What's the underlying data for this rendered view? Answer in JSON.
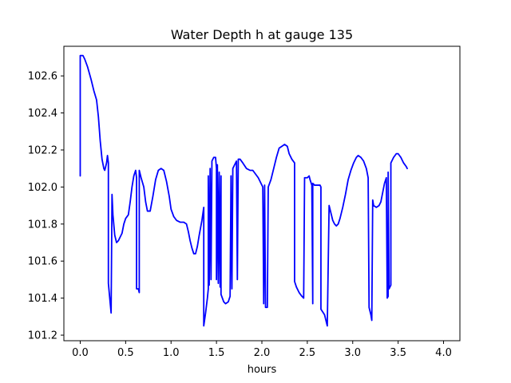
{
  "chart_data": {
    "type": "line",
    "title": "Water Depth h at gauge 135",
    "xlabel": "hours",
    "ylabel": "",
    "xlim": [
      -0.18,
      4.18
    ],
    "ylim": [
      101.17,
      102.76
    ],
    "xticks": [
      0.0,
      0.5,
      1.0,
      1.5,
      2.0,
      2.5,
      3.0,
      3.5,
      4.0
    ],
    "xtick_labels": [
      "0.0",
      "0.5",
      "1.0",
      "1.5",
      "2.0",
      "2.5",
      "3.0",
      "3.5",
      "4.0"
    ],
    "yticks": [
      101.2,
      101.4,
      101.6,
      101.8,
      102.0,
      102.2,
      102.4,
      102.6
    ],
    "ytick_labels": [
      "101.2",
      "101.4",
      "101.6",
      "101.8",
      "102.0",
      "102.2",
      "102.4",
      "102.6"
    ],
    "grid": false,
    "legend": "none",
    "series": [
      {
        "color": "#0000ff",
        "points": [
          [
            0.0,
            102.06
          ],
          [
            0.0,
            102.71
          ],
          [
            0.03,
            102.71
          ],
          [
            0.05,
            102.69
          ],
          [
            0.08,
            102.65
          ],
          [
            0.12,
            102.58
          ],
          [
            0.15,
            102.52
          ],
          [
            0.18,
            102.47
          ],
          [
            0.2,
            102.38
          ],
          [
            0.22,
            102.25
          ],
          [
            0.24,
            102.15
          ],
          [
            0.26,
            102.1
          ],
          [
            0.27,
            102.09
          ],
          [
            0.29,
            102.13
          ],
          [
            0.3,
            102.17
          ],
          [
            0.31,
            102.13
          ],
          [
            0.31,
            101.48
          ],
          [
            0.34,
            101.32
          ],
          [
            0.35,
            101.96
          ],
          [
            0.36,
            101.85
          ],
          [
            0.38,
            101.74
          ],
          [
            0.4,
            101.7
          ],
          [
            0.42,
            101.71
          ],
          [
            0.44,
            101.73
          ],
          [
            0.46,
            101.75
          ],
          [
            0.48,
            101.8
          ],
          [
            0.5,
            101.83
          ],
          [
            0.53,
            101.85
          ],
          [
            0.55,
            101.92
          ],
          [
            0.57,
            102.0
          ],
          [
            0.59,
            102.06
          ],
          [
            0.61,
            102.09
          ],
          [
            0.62,
            102.05
          ],
          [
            0.62,
            101.45
          ],
          [
            0.64,
            101.45
          ],
          [
            0.65,
            101.43
          ],
          [
            0.65,
            102.09
          ],
          [
            0.67,
            102.05
          ],
          [
            0.7,
            102.0
          ],
          [
            0.72,
            101.92
          ],
          [
            0.74,
            101.87
          ],
          [
            0.77,
            101.87
          ],
          [
            0.8,
            101.95
          ],
          [
            0.83,
            102.04
          ],
          [
            0.86,
            102.09
          ],
          [
            0.89,
            102.1
          ],
          [
            0.92,
            102.09
          ],
          [
            0.95,
            102.03
          ],
          [
            0.98,
            101.95
          ],
          [
            1.0,
            101.88
          ],
          [
            1.03,
            101.84
          ],
          [
            1.06,
            101.82
          ],
          [
            1.1,
            101.81
          ],
          [
            1.14,
            101.81
          ],
          [
            1.17,
            101.8
          ],
          [
            1.19,
            101.76
          ],
          [
            1.21,
            101.71
          ],
          [
            1.23,
            101.67
          ],
          [
            1.25,
            101.64
          ],
          [
            1.27,
            101.64
          ],
          [
            1.29,
            101.68
          ],
          [
            1.31,
            101.74
          ],
          [
            1.34,
            101.82
          ],
          [
            1.36,
            101.89
          ],
          [
            1.36,
            101.25
          ],
          [
            1.38,
            101.32
          ],
          [
            1.4,
            101.4
          ],
          [
            1.41,
            101.45
          ],
          [
            1.41,
            102.06
          ],
          [
            1.42,
            101.47
          ],
          [
            1.43,
            102.1
          ],
          [
            1.44,
            101.5
          ],
          [
            1.45,
            102.14
          ],
          [
            1.47,
            102.16
          ],
          [
            1.49,
            102.16
          ],
          [
            1.5,
            102.1
          ],
          [
            1.5,
            101.5
          ],
          [
            1.51,
            102.12
          ],
          [
            1.52,
            101.48
          ],
          [
            1.53,
            102.08
          ],
          [
            1.54,
            101.46
          ],
          [
            1.55,
            102.06
          ],
          [
            1.55,
            101.42
          ],
          [
            1.58,
            101.38
          ],
          [
            1.6,
            101.37
          ],
          [
            1.63,
            101.38
          ],
          [
            1.65,
            101.41
          ],
          [
            1.66,
            102.06
          ],
          [
            1.67,
            101.45
          ],
          [
            1.68,
            102.1
          ],
          [
            1.7,
            102.12
          ],
          [
            1.72,
            102.14
          ],
          [
            1.73,
            101.5
          ],
          [
            1.74,
            102.15
          ],
          [
            1.76,
            102.15
          ],
          [
            1.79,
            102.13
          ],
          [
            1.83,
            102.1
          ],
          [
            1.87,
            102.09
          ],
          [
            1.9,
            102.09
          ],
          [
            1.93,
            102.07
          ],
          [
            1.96,
            102.05
          ],
          [
            1.99,
            102.02
          ],
          [
            2.01,
            102.0
          ],
          [
            2.02,
            101.37
          ],
          [
            2.03,
            102.01
          ],
          [
            2.04,
            101.35
          ],
          [
            2.06,
            101.35
          ],
          [
            2.07,
            102.0
          ],
          [
            2.1,
            102.04
          ],
          [
            2.13,
            102.1
          ],
          [
            2.16,
            102.16
          ],
          [
            2.19,
            102.21
          ],
          [
            2.22,
            102.22
          ],
          [
            2.25,
            102.23
          ],
          [
            2.28,
            102.22
          ],
          [
            2.3,
            102.18
          ],
          [
            2.33,
            102.15
          ],
          [
            2.36,
            102.13
          ],
          [
            2.36,
            101.49
          ],
          [
            2.38,
            101.46
          ],
          [
            2.41,
            101.43
          ],
          [
            2.44,
            101.41
          ],
          [
            2.46,
            101.4
          ],
          [
            2.47,
            102.05
          ],
          [
            2.5,
            102.05
          ],
          [
            2.52,
            102.06
          ],
          [
            2.53,
            102.04
          ],
          [
            2.55,
            102.01
          ],
          [
            2.56,
            101.37
          ],
          [
            2.56,
            102.02
          ],
          [
            2.58,
            102.01
          ],
          [
            2.6,
            102.01
          ],
          [
            2.62,
            102.01
          ],
          [
            2.64,
            102.01
          ],
          [
            2.65,
            102.0
          ],
          [
            2.65,
            101.34
          ],
          [
            2.69,
            101.31
          ],
          [
            2.72,
            101.25
          ],
          [
            2.74,
            101.9
          ],
          [
            2.76,
            101.86
          ],
          [
            2.78,
            101.82
          ],
          [
            2.8,
            101.8
          ],
          [
            2.82,
            101.79
          ],
          [
            2.84,
            101.8
          ],
          [
            2.86,
            101.83
          ],
          [
            2.89,
            101.89
          ],
          [
            2.92,
            101.96
          ],
          [
            2.95,
            102.04
          ],
          [
            2.98,
            102.09
          ],
          [
            3.01,
            102.13
          ],
          [
            3.04,
            102.16
          ],
          [
            3.06,
            102.17
          ],
          [
            3.09,
            102.16
          ],
          [
            3.12,
            102.14
          ],
          [
            3.15,
            102.1
          ],
          [
            3.17,
            102.05
          ],
          [
            3.18,
            101.35
          ],
          [
            3.2,
            101.31
          ],
          [
            3.21,
            101.28
          ],
          [
            3.22,
            101.93
          ],
          [
            3.23,
            101.9
          ],
          [
            3.26,
            101.89
          ],
          [
            3.29,
            101.9
          ],
          [
            3.31,
            101.92
          ],
          [
            3.33,
            101.97
          ],
          [
            3.35,
            102.02
          ],
          [
            3.37,
            102.05
          ],
          [
            3.38,
            101.4
          ],
          [
            3.39,
            101.41
          ],
          [
            3.39,
            102.08
          ],
          [
            3.4,
            101.45
          ],
          [
            3.42,
            101.47
          ],
          [
            3.42,
            102.13
          ],
          [
            3.45,
            102.16
          ],
          [
            3.48,
            102.18
          ],
          [
            3.5,
            102.18
          ],
          [
            3.53,
            102.16
          ],
          [
            3.56,
            102.13
          ],
          [
            3.59,
            102.11
          ],
          [
            3.6,
            102.1
          ]
        ]
      }
    ]
  }
}
